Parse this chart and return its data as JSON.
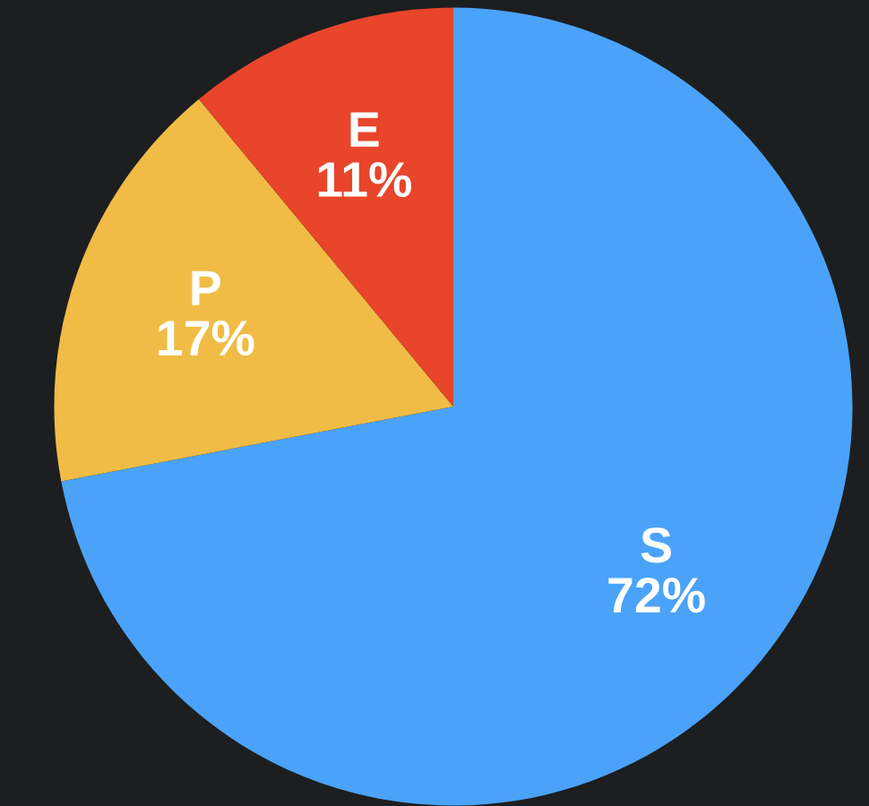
{
  "chart_data": {
    "type": "pie",
    "categories": [
      "S",
      "P",
      "E"
    ],
    "values": [
      72,
      17,
      11
    ],
    "value_labels": [
      "72%",
      "17%",
      "11%"
    ],
    "colors": [
      "#4aa3f8",
      "#f0bc45",
      "#e8452b"
    ],
    "legend": false
  }
}
